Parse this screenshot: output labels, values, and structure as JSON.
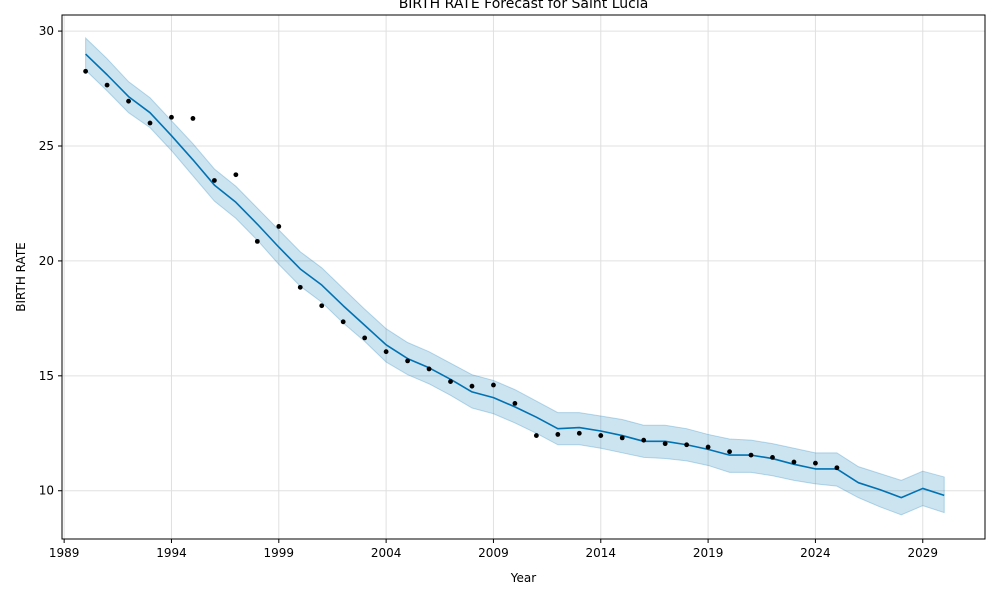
{
  "chart_data": {
    "type": "line",
    "title": "BIRTH RATE Forecast for Saint Lucia",
    "xlabel": "Year",
    "ylabel": "BIRTH RATE",
    "xlim": [
      1988.9,
      2031.9
    ],
    "ylim": [
      7.9,
      30.7
    ],
    "x_ticks": [
      1989,
      1994,
      1999,
      2004,
      2009,
      2014,
      2019,
      2024,
      2029
    ],
    "y_ticks": [
      10,
      15,
      20,
      25,
      30
    ],
    "grid": true,
    "colors": {
      "forecast_line": "#0072B2",
      "uncertainty_band": "#0072B2",
      "observed_points": "#000000",
      "grid": "#e0e0e0"
    },
    "series": [
      {
        "kind": "observed",
        "x": [
          1990,
          1991,
          1992,
          1993,
          1994,
          1995,
          1996,
          1997,
          1998,
          1999,
          2000,
          2001,
          2002,
          2003,
          2004,
          2005,
          2006,
          2007,
          2008,
          2009,
          2010,
          2011,
          2012,
          2013,
          2014,
          2015,
          2016,
          2017,
          2018,
          2019,
          2020,
          2021,
          2022,
          2023,
          2024,
          2025
        ],
        "y": [
          28.25,
          27.65,
          26.95,
          26.0,
          26.25,
          26.2,
          23.5,
          23.75,
          20.85,
          21.5,
          18.85,
          18.05,
          17.35,
          16.65,
          16.05,
          15.65,
          15.3,
          14.75,
          14.55,
          14.6,
          13.8,
          12.4,
          12.45,
          12.5,
          12.4,
          12.3,
          12.2,
          12.05,
          12.0,
          11.9,
          11.7,
          11.55,
          11.45,
          11.25,
          11.2,
          11.0
        ]
      },
      {
        "kind": "forecast",
        "x": [
          1990,
          1991,
          1992,
          1993,
          1994,
          1995,
          1996,
          1997,
          1998,
          1999,
          2000,
          2001,
          2002,
          2003,
          2004,
          2005,
          2006,
          2007,
          2008,
          2009,
          2010,
          2011,
          2012,
          2013,
          2014,
          2015,
          2016,
          2017,
          2018,
          2019,
          2020,
          2021,
          2022,
          2023,
          2024,
          2025,
          2026,
          2027,
          2028,
          2029,
          2030
        ],
        "y": [
          29.0,
          28.1,
          27.15,
          26.45,
          25.45,
          24.4,
          23.3,
          22.55,
          21.6,
          20.6,
          19.65,
          18.95,
          18.05,
          17.2,
          16.35,
          15.75,
          15.35,
          14.85,
          14.3,
          14.05,
          13.65,
          13.2,
          12.7,
          12.75,
          12.6,
          12.4,
          12.15,
          12.15,
          12.0,
          11.8,
          11.55,
          11.55,
          11.4,
          11.15,
          10.95,
          10.95,
          10.35,
          10.05,
          9.7,
          10.1,
          9.8
        ]
      },
      {
        "kind": "upper_bound",
        "y": [
          29.7,
          28.8,
          27.8,
          27.1,
          26.1,
          25.1,
          24.0,
          23.25,
          22.3,
          21.35,
          20.4,
          19.7,
          18.8,
          17.9,
          17.05,
          16.45,
          16.05,
          15.55,
          15.05,
          14.8,
          14.4,
          13.9,
          13.4,
          13.4,
          13.25,
          13.1,
          12.85,
          12.85,
          12.7,
          12.45,
          12.25,
          12.2,
          12.05,
          11.85,
          11.65,
          11.65,
          11.05,
          10.75,
          10.45,
          10.85,
          10.6
        ]
      },
      {
        "kind": "lower_bound",
        "y": [
          28.3,
          27.4,
          26.45,
          25.8,
          24.8,
          23.7,
          22.6,
          21.85,
          20.9,
          19.85,
          18.9,
          18.2,
          17.3,
          16.5,
          15.6,
          15.05,
          14.65,
          14.15,
          13.6,
          13.35,
          12.95,
          12.5,
          12.0,
          12.0,
          11.85,
          11.65,
          11.45,
          11.4,
          11.3,
          11.1,
          10.8,
          10.8,
          10.65,
          10.45,
          10.3,
          10.2,
          9.7,
          9.3,
          8.95,
          9.35,
          9.05
        ]
      }
    ]
  }
}
